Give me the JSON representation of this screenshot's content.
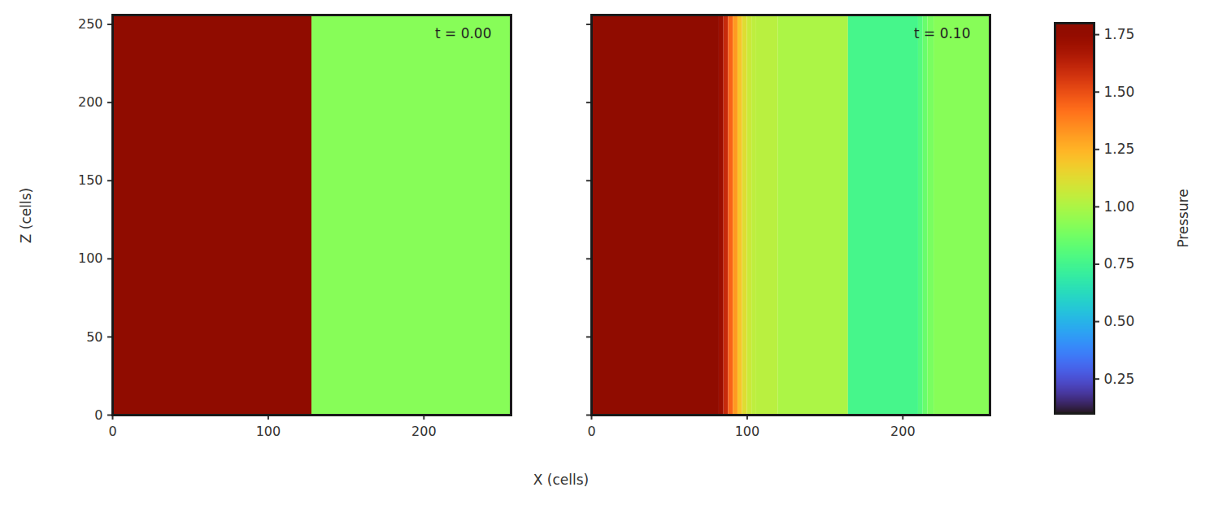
{
  "chart_data": {
    "type": "heatmap",
    "xlabel": "X (cells)",
    "ylabel": "Z (cells)",
    "xlim": [
      0,
      256
    ],
    "ylim": [
      0,
      256
    ],
    "xticks": [
      0,
      100,
      200
    ],
    "yticks": [
      0,
      50,
      100,
      150,
      200,
      250
    ],
    "color": "turbo",
    "colorbar": {
      "label": "Pressure",
      "range": [
        0.1,
        1.8
      ],
      "ticks": [
        {
          "value": 0.25,
          "label": "0.25"
        },
        {
          "value": 0.5,
          "label": "0.50"
        },
        {
          "value": 0.75,
          "label": "0.75"
        },
        {
          "value": 1.0,
          "label": "1.00"
        },
        {
          "value": 1.25,
          "label": "1.25"
        },
        {
          "value": 1.5,
          "label": "1.50"
        },
        {
          "value": 1.75,
          "label": "1.75"
        }
      ]
    },
    "panels": [
      {
        "annotation": "t = 0.00",
        "x_bins": [
          0,
          128,
          256
        ],
        "values": [
          1.8,
          0.92
        ]
      },
      {
        "annotation": "t = 0.10",
        "tick_labels": "x",
        "x_bins": [
          0,
          82,
          85,
          88,
          91,
          94,
          97,
          100,
          103,
          106,
          120,
          165,
          210,
          213,
          216,
          220,
          256
        ],
        "values": [
          1.8,
          1.72,
          1.6,
          1.45,
          1.32,
          1.2,
          1.12,
          1.07,
          1.04,
          1.03,
          1.0,
          0.76,
          0.8,
          0.85,
          0.89,
          0.92
        ]
      }
    ]
  }
}
